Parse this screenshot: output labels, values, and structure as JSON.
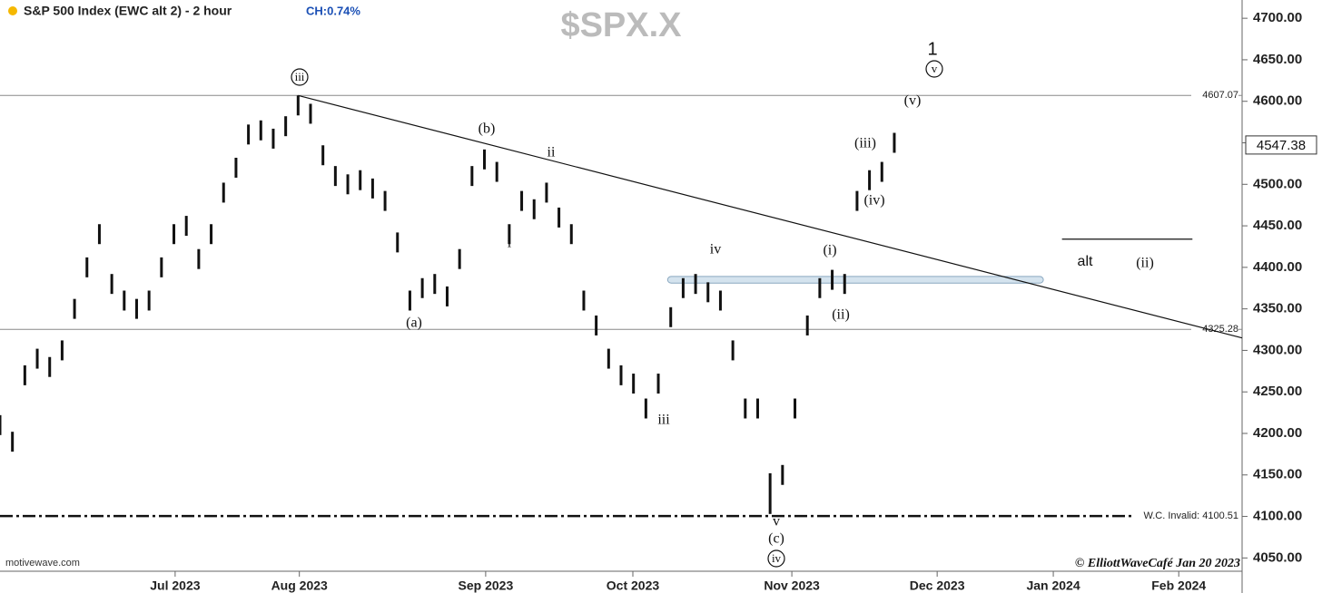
{
  "chart_data": {
    "type": "ohlc",
    "title": "S&P 500 Index (EWC alt 2) - 2 hour",
    "change": "CH:0.74%",
    "symbol": "$SPX.X",
    "source": "motivewave.com",
    "copyright": "© ElliottWaveCafé Jan 20 2023",
    "color": "#111111",
    "x": [
      0,
      2,
      4,
      6,
      8,
      10,
      12,
      14,
      16,
      18,
      20,
      22,
      24,
      26,
      28,
      30,
      32,
      34,
      36,
      38,
      40,
      42,
      44,
      46,
      48,
      50,
      52,
      54,
      56,
      58,
      60,
      62,
      64,
      66,
      68,
      70,
      72,
      74,
      76,
      78,
      80,
      82,
      84,
      86,
      88,
      90,
      92,
      94,
      96,
      98,
      100,
      102,
      104,
      106,
      108,
      110,
      112,
      114,
      116,
      118,
      120,
      122,
      124,
      126,
      128,
      130,
      132,
      134,
      136,
      138,
      140,
      142,
      144
    ],
    "high": [
      4222,
      4202,
      4282,
      4302,
      4292,
      4312,
      4362,
      4412,
      4452,
      4392,
      4372,
      4362,
      4372,
      4412,
      4452,
      4462,
      4422,
      4452,
      4502,
      4532,
      4572,
      4577,
      4567,
      4582,
      4607,
      4597,
      4547,
      4522,
      4512,
      4517,
      4507,
      4492,
      4442,
      4372,
      4387,
      4392,
      4377,
      4422,
      4522,
      4542,
      4527,
      4452,
      4492,
      4482,
      4502,
      4472,
      4452,
      4372,
      4342,
      4302,
      4282,
      4272,
      4242,
      4272,
      4352,
      4387,
      4392,
      4382,
      4372,
      4312,
      4242,
      4242,
      4152,
      4162,
      4242,
      4342,
      4387,
      4397,
      4392,
      4492,
      4517,
      4527,
      4562
    ],
    "low": [
      4198,
      4178,
      4258,
      4278,
      4268,
      4288,
      4338,
      4388,
      4428,
      4368,
      4348,
      4338,
      4348,
      4388,
      4428,
      4438,
      4398,
      4428,
      4478,
      4508,
      4548,
      4553,
      4543,
      4558,
      4583,
      4573,
      4523,
      4498,
      4488,
      4493,
      4483,
      4468,
      4418,
      4348,
      4363,
      4368,
      4353,
      4398,
      4498,
      4518,
      4503,
      4428,
      4468,
      4458,
      4478,
      4448,
      4428,
      4348,
      4318,
      4278,
      4258,
      4248,
      4218,
      4248,
      4328,
      4363,
      4368,
      4358,
      4348,
      4288,
      4218,
      4218,
      4103,
      4138,
      4218,
      4318,
      4363,
      4373,
      4368,
      4468,
      4493,
      4503,
      4538
    ],
    "xlim": [
      0,
      200
    ],
    "xticks": [
      {
        "value": 28.2,
        "label": "Jul 2023"
      },
      {
        "value": 48.2,
        "label": "Aug 2023"
      },
      {
        "value": 78.2,
        "label": "Sep 2023"
      },
      {
        "value": 101.9,
        "label": "Oct 2023"
      },
      {
        "value": 127.5,
        "label": "Nov 2023"
      },
      {
        "value": 150.9,
        "label": "Dec 2023"
      },
      {
        "value": 169.6,
        "label": "Jan 2024"
      },
      {
        "value": 189.8,
        "label": "Feb 2024"
      }
    ],
    "ylim": [
      4034,
      4722
    ],
    "yticks": [
      {
        "value": 4050,
        "label": "4050.00"
      },
      {
        "value": 4100,
        "label": "4100.00"
      },
      {
        "value": 4150,
        "label": "4150.00"
      },
      {
        "value": 4200,
        "label": "4200.00"
      },
      {
        "value": 4250,
        "label": "4250.00"
      },
      {
        "value": 4300,
        "label": "4300.00"
      },
      {
        "value": 4350,
        "label": "4350.00"
      },
      {
        "value": 4400,
        "label": "4400.00"
      },
      {
        "value": 4450,
        "label": "4450.00"
      },
      {
        "value": 4500,
        "label": "4500.00"
      },
      {
        "value": 4550,
        "label": "4550.00"
      },
      {
        "value": 4600,
        "label": "4600.00"
      },
      {
        "value": 4650,
        "label": "4650.00"
      },
      {
        "value": 4700,
        "label": "4700.00"
      }
    ],
    "last_price": {
      "value": 4547.38,
      "label": "4547.38"
    },
    "levels": [
      {
        "value": 4607.07,
        "label": "4607.07"
      },
      {
        "value": 4325.28,
        "label": "4325.28"
      },
      {
        "value": 4100.51,
        "label": "W.C. Invalid: 4100.51"
      }
    ],
    "trendline": {
      "x": [
        48,
        200
      ],
      "y": [
        4607,
        4315
      ]
    },
    "alt_line": {
      "x": [
        171,
        192
      ],
      "y": [
        4434,
        4434
      ]
    },
    "zone": {
      "x": [
        107.5,
        168
      ],
      "y": [
        4381,
        4389
      ]
    },
    "annotations": [
      {
        "text": "iii",
        "circled": true
      },
      {
        "text": "(b)",
        "circled": false
      },
      {
        "text": "ii",
        "circled": false
      },
      {
        "text": "i",
        "circled": false
      },
      {
        "text": "(a)",
        "circled": false
      },
      {
        "text": "iii",
        "circled": false
      },
      {
        "text": "iv",
        "circled": false
      },
      {
        "text": "v",
        "circled": false
      },
      {
        "text": "(c)",
        "circled": false
      },
      {
        "text": "iv",
        "circled": true
      },
      {
        "text": "(i)",
        "circled": false
      },
      {
        "text": "(ii)",
        "circled": false
      },
      {
        "text": "(iii)",
        "circled": false
      },
      {
        "text": "(iv)",
        "circled": false
      },
      {
        "text": "(v)",
        "circled": false
      },
      {
        "text": "1",
        "circled": false
      },
      {
        "text": "v",
        "circled": true
      },
      {
        "text": "alt",
        "circled": false
      },
      {
        "text": "(ii)",
        "circled": false
      }
    ]
  }
}
